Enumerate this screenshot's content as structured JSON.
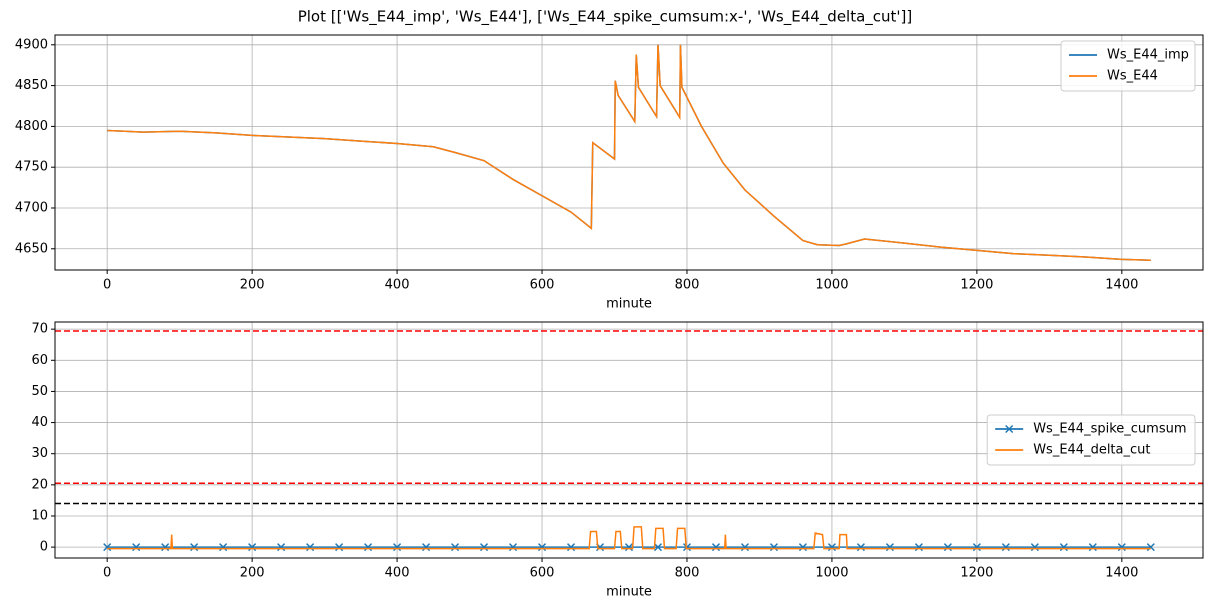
{
  "chart_data": [
    {
      "type": "line",
      "title": "Plot [['Ws_E44_imp', 'Ws_E44'], ['Ws_E44_spike_cumsum:x-', 'Ws_E44_delta_cut']]",
      "xlabel": "minute",
      "xlim": [
        -72,
        1512
      ],
      "xticks": [
        0,
        200,
        400,
        600,
        800,
        1000,
        1200,
        1400
      ],
      "ylim": [
        4624,
        4912
      ],
      "yticks": [
        4650,
        4700,
        4750,
        4800,
        4850,
        4900
      ],
      "grid": true,
      "legend": "upper right",
      "series": [
        {
          "name": "Ws_E44_imp",
          "color": "#1f77b4",
          "x": [
            0,
            50,
            100,
            150,
            200,
            250,
            300,
            350,
            400,
            450,
            480,
            520,
            560,
            600,
            640,
            668,
            670,
            700,
            701,
            705,
            728,
            730,
            733,
            758,
            760,
            763,
            790,
            791,
            793,
            820,
            840,
            850,
            880,
            920,
            960,
            980,
            1010,
            1020,
            1045,
            1100,
            1150,
            1200,
            1250,
            1300,
            1350,
            1400,
            1440
          ],
          "values": [
            4795,
            4793,
            4794,
            4792,
            4789,
            4787,
            4785,
            4782,
            4779,
            4775,
            4768,
            4758,
            4735,
            4715,
            4695,
            4675,
            4780,
            4760,
            4856,
            4838,
            4806,
            4888,
            4848,
            4812,
            4900,
            4850,
            4811,
            4900,
            4848,
            4800,
            4770,
            4755,
            4722,
            4690,
            4660,
            4655,
            4654,
            4656,
            4662,
            4657,
            4652,
            4648,
            4644,
            4642,
            4640,
            4637,
            4636
          ]
        },
        {
          "name": "Ws_E44",
          "color": "#ff7f0e",
          "x": [
            0,
            50,
            100,
            150,
            200,
            250,
            300,
            350,
            400,
            450,
            480,
            520,
            560,
            600,
            640,
            668,
            670,
            700,
            701,
            705,
            728,
            730,
            733,
            758,
            760,
            763,
            790,
            791,
            793,
            820,
            840,
            850,
            880,
            920,
            960,
            980,
            1010,
            1020,
            1045,
            1100,
            1150,
            1200,
            1250,
            1300,
            1350,
            1400,
            1440
          ],
          "values": [
            4795,
            4793,
            4794,
            4792,
            4789,
            4787,
            4785,
            4782,
            4779,
            4775,
            4768,
            4758,
            4735,
            4715,
            4695,
            4675,
            4780,
            4760,
            4856,
            4838,
            4806,
            4888,
            4848,
            4812,
            4900,
            4850,
            4811,
            4900,
            4848,
            4800,
            4770,
            4755,
            4722,
            4690,
            4660,
            4655,
            4654,
            4656,
            4662,
            4657,
            4652,
            4648,
            4644,
            4642,
            4640,
            4637,
            4636
          ]
        }
      ]
    },
    {
      "type": "line",
      "xlabel": "minute",
      "xlim": [
        -72,
        1512
      ],
      "xticks": [
        0,
        200,
        400,
        600,
        800,
        1000,
        1200,
        1400
      ],
      "ylim": [
        -3.5,
        72.3
      ],
      "yticks": [
        0,
        10,
        20,
        30,
        40,
        50,
        60,
        70
      ],
      "grid": true,
      "legend": "center right",
      "hlines": [
        {
          "value": 69.4,
          "color": "red",
          "linestyle": "--"
        },
        {
          "value": 20.5,
          "color": "red",
          "linestyle": "--"
        },
        {
          "value": 14,
          "color": "black",
          "linestyle": "--"
        }
      ],
      "series": [
        {
          "name": "Ws_E44_spike_cumsum",
          "color": "#1f77b4",
          "marker": "x",
          "x": [
            0,
            40,
            80,
            120,
            160,
            200,
            240,
            280,
            320,
            360,
            400,
            440,
            480,
            520,
            560,
            600,
            640,
            680,
            720,
            760,
            800,
            840,
            880,
            920,
            960,
            1000,
            1040,
            1080,
            1120,
            1160,
            1200,
            1240,
            1280,
            1320,
            1360,
            1400,
            1440
          ],
          "values": [
            0,
            0,
            0,
            0,
            0,
            0,
            0,
            0,
            0,
            0,
            0,
            0,
            0,
            0,
            0,
            0,
            0,
            0,
            0,
            0,
            0,
            0,
            0,
            0,
            0,
            0,
            0,
            0,
            0,
            0,
            0,
            0,
            0,
            0,
            0,
            0,
            0
          ]
        },
        {
          "name": "Ws_E44_delta_cut",
          "color": "#ff7f0e",
          "x": [
            0,
            88,
            89,
            90,
            665,
            667,
            675,
            677,
            700,
            702,
            708,
            710,
            725,
            727,
            737,
            739,
            755,
            757,
            767,
            769,
            785,
            787,
            797,
            799,
            852,
            853,
            854,
            975,
            977,
            987,
            989,
            1010,
            1011,
            1020,
            1021,
            1440
          ],
          "values": [
            -0.5,
            -0.5,
            4,
            -0.5,
            -0.5,
            5,
            5,
            -0.5,
            -0.5,
            5,
            5,
            -0.5,
            -0.5,
            6.5,
            6.5,
            -0.5,
            -0.5,
            6,
            6,
            -0.5,
            -0.5,
            6,
            6,
            -0.5,
            -0.5,
            4,
            -0.5,
            -0.5,
            4.5,
            4,
            -0.5,
            -0.5,
            4,
            4,
            -0.5,
            -0.5
          ]
        }
      ]
    }
  ]
}
